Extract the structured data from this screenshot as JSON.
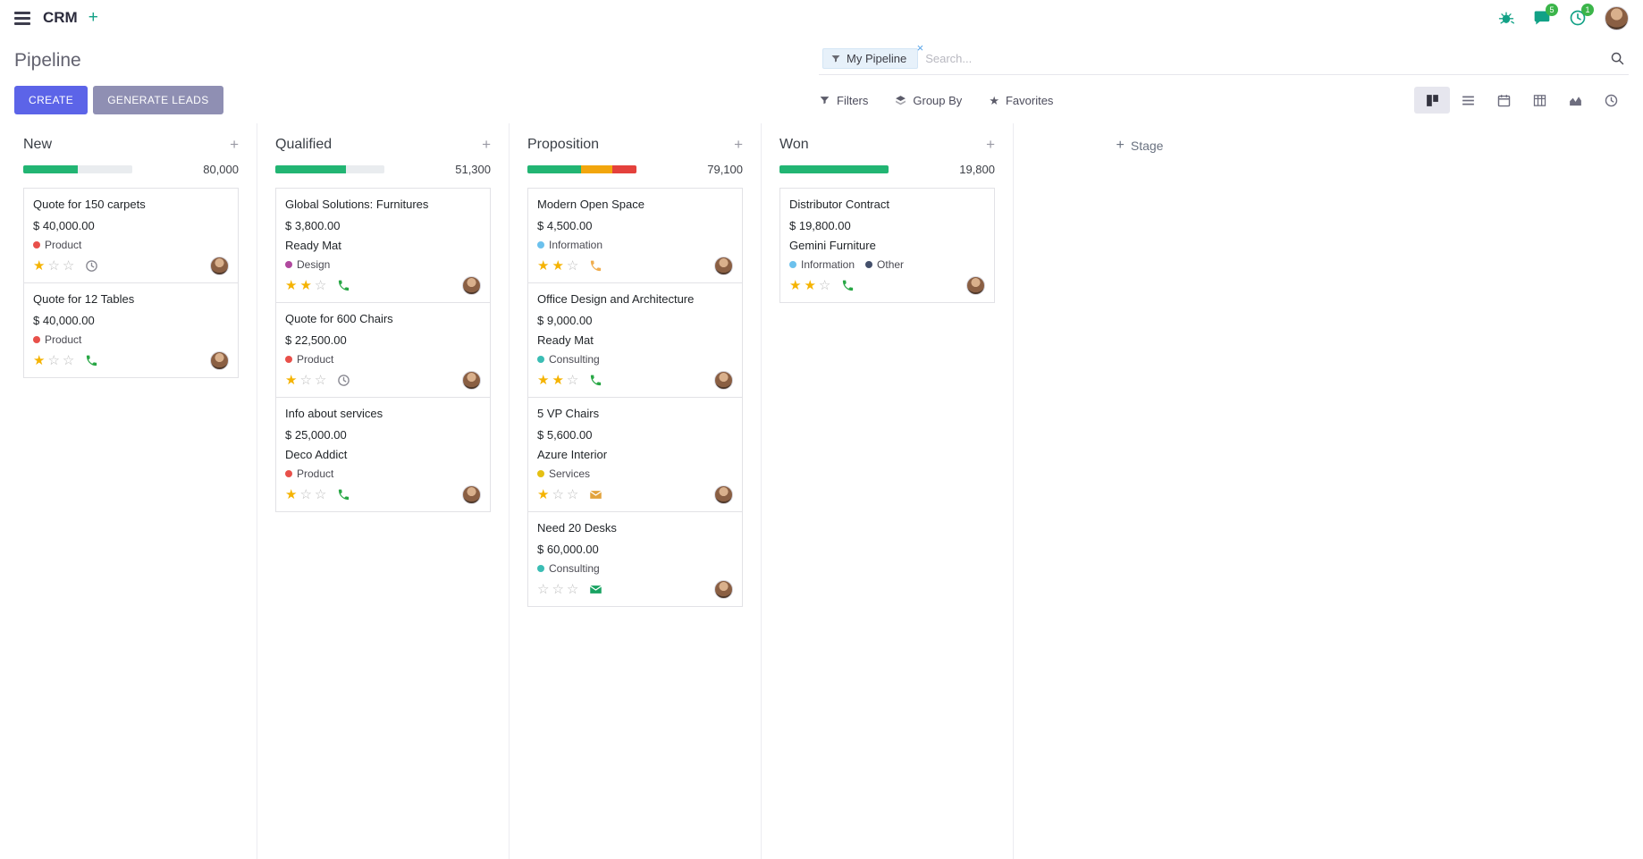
{
  "icons": {
    "plus": "+",
    "close": "×",
    "star_filled": "★",
    "star_empty": "☆"
  },
  "colors": {
    "primary": "#5c64e8",
    "muted_button": "#8f8fb3",
    "success": "#22b573",
    "warning": "#f2a60d",
    "danger": "#e4413c",
    "badge": "#3bb54a",
    "topbar_icon": "#12a186"
  },
  "topbar": {
    "app_name": "CRM",
    "messages_badge": "5",
    "activities_badge": "1"
  },
  "control_panel": {
    "title": "Pipeline",
    "create_label": "CREATE",
    "generate_label": "GENERATE LEADS",
    "search": {
      "facet_label": "My Pipeline",
      "placeholder": "Search..."
    },
    "filters_label": "Filters",
    "group_by_label": "Group By",
    "favorites_label": "Favorites"
  },
  "view_switcher": {
    "active": "kanban",
    "views": [
      "kanban",
      "list",
      "calendar",
      "pivot",
      "graph",
      "activity"
    ]
  },
  "board": {
    "add_stage_label": "Stage",
    "columns": [
      {
        "name": "New",
        "counter": "80,000",
        "bar": {
          "segments": [
            {
              "color": "#22b573",
              "pct": 50
            }
          ]
        },
        "cards": [
          {
            "title": "Quote for 150 carpets",
            "amount": "$ 40,000.00",
            "tags": [
              {
                "label": "Product",
                "color": "#e8504a"
              }
            ],
            "stars": 1,
            "activity": {
              "type": "clock",
              "color": "#8a8a93"
            }
          },
          {
            "title": "Quote for 12 Tables",
            "amount": "$ 40,000.00",
            "tags": [
              {
                "label": "Product",
                "color": "#e8504a"
              }
            ],
            "stars": 1,
            "activity": {
              "type": "phone",
              "color": "#28a745"
            }
          }
        ]
      },
      {
        "name": "Qualified",
        "counter": "51,300",
        "bar": {
          "segments": [
            {
              "color": "#22b573",
              "pct": 65
            }
          ]
        },
        "cards": [
          {
            "title": "Global Solutions: Furnitures",
            "amount": "$ 3,800.00",
            "partner": "Ready Mat",
            "tags": [
              {
                "label": "Design",
                "color": "#b0499e"
              }
            ],
            "stars": 2,
            "activity": {
              "type": "phone",
              "color": "#28a745"
            }
          },
          {
            "title": "Quote for 600 Chairs",
            "amount": "$ 22,500.00",
            "tags": [
              {
                "label": "Product",
                "color": "#e8504a"
              }
            ],
            "stars": 1,
            "activity": {
              "type": "clock",
              "color": "#8a8a93"
            }
          },
          {
            "title": "Info about services",
            "amount": "$ 25,000.00",
            "partner": "Deco Addict",
            "tags": [
              {
                "label": "Product",
                "color": "#e8504a"
              }
            ],
            "stars": 1,
            "activity": {
              "type": "phone",
              "color": "#28a745"
            }
          }
        ]
      },
      {
        "name": "Proposition",
        "counter": "79,100",
        "bar": {
          "segments": [
            {
              "color": "#22b573",
              "pct": 49
            },
            {
              "color": "#f2a60d",
              "pct": 29
            },
            {
              "color": "#e4413c",
              "pct": 22
            }
          ]
        },
        "cards": [
          {
            "title": "Modern Open Space",
            "amount": "$ 4,500.00",
            "tags": [
              {
                "label": "Information",
                "color": "#6cc1ed"
              }
            ],
            "stars": 2,
            "activity": {
              "type": "phone",
              "color": "#f0ad4e"
            }
          },
          {
            "title": "Office Design and Architecture",
            "amount": "$ 9,000.00",
            "partner": "Ready Mat",
            "tags": [
              {
                "label": "Consulting",
                "color": "#3bbdb4"
              }
            ],
            "stars": 2,
            "activity": {
              "type": "phone",
              "color": "#28a745"
            }
          },
          {
            "title": "5 VP Chairs",
            "amount": "$ 5,600.00",
            "partner": "Azure Interior",
            "tags": [
              {
                "label": "Services",
                "color": "#e5c013"
              }
            ],
            "stars": 1,
            "activity": {
              "type": "envelope",
              "color": "#e2a33d"
            }
          },
          {
            "title": "Need 20 Desks",
            "amount": "$ 60,000.00",
            "tags": [
              {
                "label": "Consulting",
                "color": "#3bbdb4"
              }
            ],
            "stars": 0,
            "activity": {
              "type": "envelope",
              "color": "#18a362"
            }
          }
        ]
      },
      {
        "name": "Won",
        "counter": "19,800",
        "bar": {
          "segments": [
            {
              "color": "#22b573",
              "pct": 100
            }
          ]
        },
        "cards": [
          {
            "title": "Distributor Contract",
            "amount": "$ 19,800.00",
            "partner": "Gemini Furniture",
            "tags": [
              {
                "label": "Information",
                "color": "#6cc1ed"
              },
              {
                "label": "Other",
                "color": "#44506b"
              }
            ],
            "stars": 2,
            "activity": {
              "type": "phone",
              "color": "#28a745"
            }
          }
        ]
      }
    ]
  }
}
